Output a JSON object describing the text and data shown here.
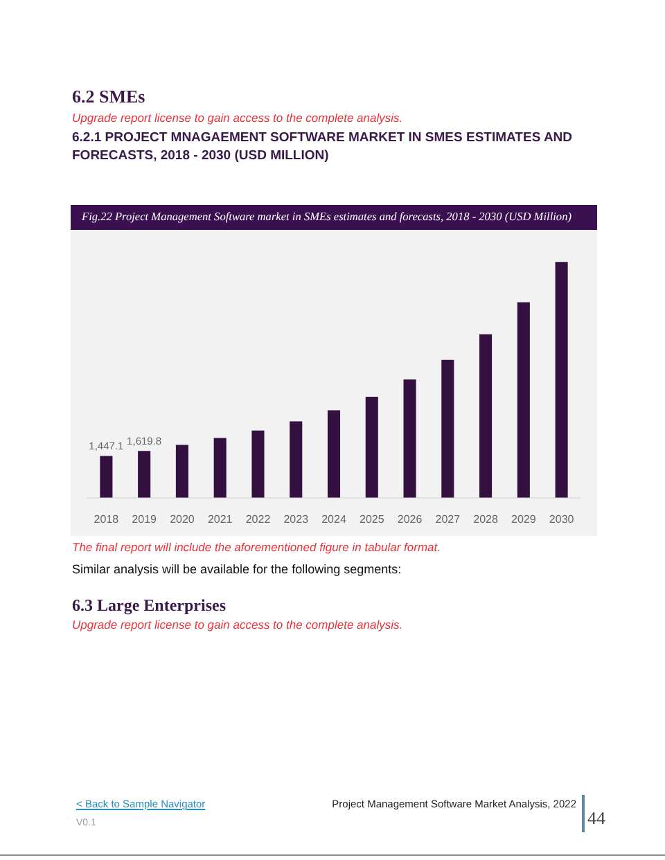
{
  "chart_data": {
    "type": "bar",
    "title": "Fig.22  Project Management Software market in SMEs estimates and forecasts, 2018 - 2030 (USD Million)",
    "subtitle": "6.2.1 PROJECT MNAGAEMENT SOFTWARE MARKET IN SMES ESTIMATES AND FORECASTS, 2018 - 2030 (USD MILLION)",
    "categories": [
      "2018",
      "2019",
      "2020",
      "2021",
      "2022",
      "2023",
      "2024",
      "2025",
      "2026",
      "2027",
      "2028",
      "2029",
      "2030"
    ],
    "values": [
      1447.1,
      1619.8,
      1830,
      2070,
      2330,
      2650,
      3030,
      3500,
      4100,
      4780,
      5670,
      6780,
      8180
    ],
    "value_labels": [
      "1,447.1",
      "1,619.8",
      null,
      null,
      null,
      null,
      null,
      null,
      null,
      null,
      null,
      null,
      null
    ],
    "color": "#33103f",
    "annotations": [
      "6.2 SMEs",
      "Upgrade report license to gain access to the complete analysis.",
      "The final report will include the aforementioned figure in tabular format.",
      "Similar analysis will be available for the following segments:",
      "6.3 Large Enterprises",
      "Upgrade report license to gain access to the complete analysis.",
      "< Back to Sample Navigator",
      "V0.1",
      "Project Management Software Market Analysis, 2022",
      "44"
    ]
  }
}
